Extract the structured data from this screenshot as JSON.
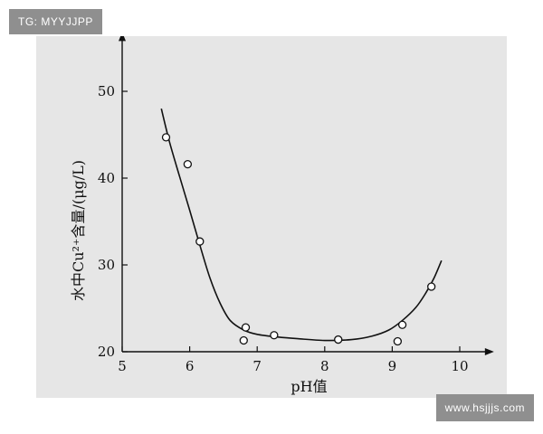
{
  "watermarks": {
    "top_left": "TG: MYYJJPP",
    "bottom_right": "www.hsjjjs.com"
  },
  "chart_data": {
    "type": "scatter",
    "title": "",
    "xlabel": "pH值",
    "ylabel": "水中Cu²⁺含量/(μg/L)",
    "xlim": [
      5,
      10.4
    ],
    "ylim": [
      20,
      56
    ],
    "xticks": [
      5,
      6,
      7,
      8,
      9,
      10
    ],
    "yticks": [
      20,
      30,
      40,
      50
    ],
    "grid": false,
    "legend": "none",
    "series": [
      {
        "kind": "points",
        "x": [
          5.65,
          5.97,
          6.15,
          6.8,
          6.83,
          7.25,
          8.2,
          9.08,
          9.15,
          9.58
        ],
        "y": [
          44.7,
          41.6,
          32.7,
          21.3,
          22.8,
          21.9,
          21.4,
          21.2,
          23.1,
          27.5
        ]
      },
      {
        "kind": "fitted_curve",
        "x": [
          5.58,
          5.7,
          5.85,
          6.0,
          6.15,
          6.3,
          6.45,
          6.6,
          6.8,
          7.0,
          7.3,
          7.6,
          8.0,
          8.4,
          8.7,
          8.95,
          9.15,
          9.35,
          9.5,
          9.62,
          9.73
        ],
        "y": [
          48.0,
          44.2,
          40.2,
          36.3,
          32.3,
          28.5,
          25.6,
          23.6,
          22.5,
          22.0,
          21.7,
          21.5,
          21.3,
          21.4,
          21.8,
          22.5,
          23.6,
          25.1,
          26.8,
          28.5,
          30.5
        ]
      }
    ]
  }
}
